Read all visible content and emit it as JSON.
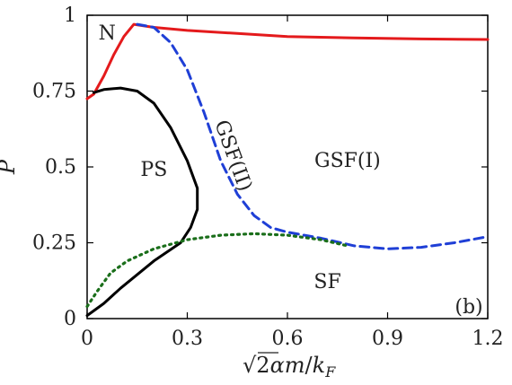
{
  "chart_data": {
    "type": "line",
    "xlabel": "√2αm/k_F",
    "ylabel": "P",
    "xlim": [
      0,
      1.2
    ],
    "ylim": [
      0,
      1
    ],
    "x_ticks": [
      "0",
      "0.3",
      "0.6",
      "0.9",
      "1.2"
    ],
    "y_ticks": [
      "0",
      "0.25",
      "0.5",
      "0.75",
      "1"
    ],
    "x_tick_values": [
      0,
      0.3,
      0.6,
      0.9,
      1.2
    ],
    "y_tick_values": [
      0,
      0.25,
      0.5,
      0.75,
      1
    ],
    "grid": false,
    "legend": "none",
    "panel_label": "(b)",
    "region_labels": [
      {
        "text": "N",
        "x": 0.06,
        "y": 0.92
      },
      {
        "text": "PS",
        "x": 0.2,
        "y": 0.47
      },
      {
        "text": "GSF(I)",
        "x": 0.78,
        "y": 0.5
      },
      {
        "text": "GSF(II)",
        "x": 0.42,
        "y": 0.53,
        "rotate": 70
      },
      {
        "text": "SF",
        "x": 0.72,
        "y": 0.1
      }
    ],
    "series": [
      {
        "color": "#e41a1c",
        "dash": "solid",
        "points": [
          [
            0.0,
            0.725
          ],
          [
            0.02,
            0.74
          ],
          [
            0.05,
            0.8
          ],
          [
            0.08,
            0.87
          ],
          [
            0.11,
            0.93
          ],
          [
            0.14,
            0.97
          ],
          [
            0.2,
            0.96
          ],
          [
            0.3,
            0.95
          ],
          [
            0.45,
            0.94
          ],
          [
            0.6,
            0.93
          ],
          [
            0.8,
            0.925
          ],
          [
            1.0,
            0.922
          ],
          [
            1.2,
            0.92
          ]
        ]
      },
      {
        "color": "#1f3fd6",
        "dash": "dashed",
        "points": [
          [
            0.15,
            0.97
          ],
          [
            0.2,
            0.96
          ],
          [
            0.25,
            0.91
          ],
          [
            0.3,
            0.82
          ],
          [
            0.35,
            0.68
          ],
          [
            0.4,
            0.52
          ],
          [
            0.45,
            0.41
          ],
          [
            0.5,
            0.34
          ],
          [
            0.55,
            0.3
          ],
          [
            0.6,
            0.285
          ],
          [
            0.7,
            0.265
          ],
          [
            0.8,
            0.24
          ],
          [
            0.9,
            0.23
          ],
          [
            1.0,
            0.235
          ],
          [
            1.1,
            0.25
          ],
          [
            1.2,
            0.27
          ]
        ]
      },
      {
        "color": "#000000",
        "dash": "solid",
        "points": [
          [
            0.02,
            0.745
          ],
          [
            0.05,
            0.755
          ],
          [
            0.1,
            0.76
          ],
          [
            0.15,
            0.75
          ],
          [
            0.2,
            0.71
          ],
          [
            0.25,
            0.63
          ],
          [
            0.3,
            0.52
          ],
          [
            0.33,
            0.43
          ],
          [
            0.33,
            0.36
          ],
          [
            0.31,
            0.3
          ],
          [
            0.28,
            0.25
          ],
          [
            0.2,
            0.19
          ],
          [
            0.1,
            0.1
          ],
          [
            0.05,
            0.05
          ],
          [
            0.0,
            0.01
          ]
        ]
      },
      {
        "color": "#1a6e1a",
        "dash": "dotted",
        "points": [
          [
            0.0,
            0.04
          ],
          [
            0.03,
            0.09
          ],
          [
            0.07,
            0.15
          ],
          [
            0.12,
            0.19
          ],
          [
            0.2,
            0.23
          ],
          [
            0.3,
            0.26
          ],
          [
            0.4,
            0.275
          ],
          [
            0.5,
            0.28
          ],
          [
            0.6,
            0.275
          ],
          [
            0.7,
            0.26
          ],
          [
            0.78,
            0.24
          ]
        ]
      }
    ]
  }
}
